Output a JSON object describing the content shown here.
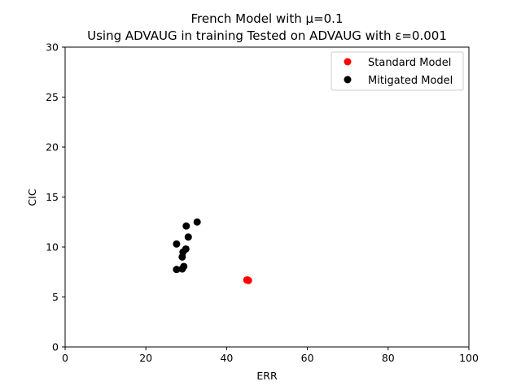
{
  "chart_data": {
    "type": "scatter",
    "title_lines": [
      "French Model with μ=0.1",
      "Using ADVAUG in training Tested on ADVAUG with ε=0.001"
    ],
    "xlabel": "ERR",
    "ylabel": "CIC",
    "xlim": [
      0,
      100
    ],
    "ylim": [
      0,
      30
    ],
    "xticks": [
      0,
      20,
      40,
      60,
      80,
      100
    ],
    "yticks": [
      0,
      5,
      10,
      15,
      20,
      25,
      30
    ],
    "legend_placement": "top-right",
    "grid": false,
    "series": [
      {
        "name": "Standard Model",
        "color": "#ff0000",
        "points": [
          {
            "x": 45.2,
            "y": 6.7
          },
          {
            "x": 45.4,
            "y": 6.65
          },
          {
            "x": 45.0,
            "y": 6.7
          }
        ]
      },
      {
        "name": "Mitigated Model",
        "color": "#000000",
        "points": [
          {
            "x": 32.7,
            "y": 12.5
          },
          {
            "x": 30.0,
            "y": 12.1
          },
          {
            "x": 30.5,
            "y": 11.0
          },
          {
            "x": 27.6,
            "y": 10.3
          },
          {
            "x": 29.9,
            "y": 9.8
          },
          {
            "x": 29.2,
            "y": 9.5
          },
          {
            "x": 29.0,
            "y": 9.0
          },
          {
            "x": 29.4,
            "y": 8.05
          },
          {
            "x": 29.0,
            "y": 7.8
          },
          {
            "x": 27.6,
            "y": 7.75
          }
        ]
      }
    ]
  }
}
